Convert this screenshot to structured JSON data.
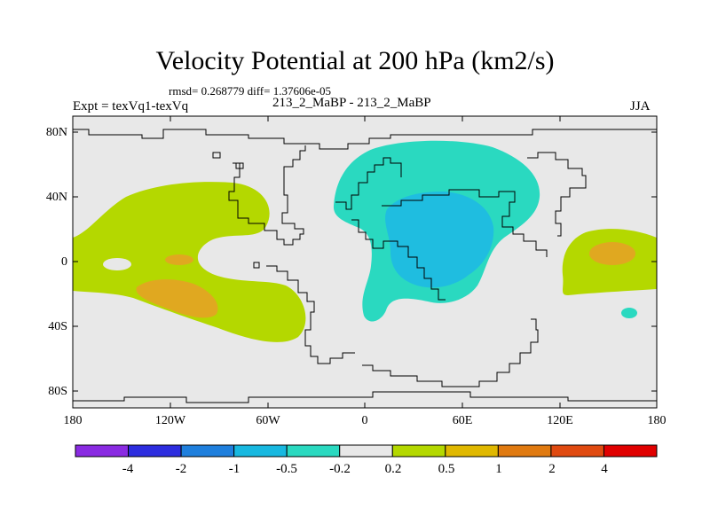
{
  "figure": {
    "title": "Velocity Potential at 200 hPa (km2/s)",
    "stats": "rmsd= 0.268779 diff= 1.37606e-05",
    "experiment": "Expt = texVq1-texVq",
    "case": "213_2_MaBP - 213_2_MaBP",
    "season": "JJA"
  },
  "axes": {
    "lat_labels": [
      "80N",
      "40N",
      "0",
      "40S",
      "80S"
    ],
    "lon_labels": [
      "180",
      "120W",
      "60W",
      "0",
      "60E",
      "120E",
      "180"
    ]
  },
  "colorbar": {
    "labels": [
      "-4",
      "-2",
      "-1",
      "-0.5",
      "-0.2",
      "0.2",
      "0.5",
      "1",
      "2",
      "4"
    ],
    "colors": [
      "#8a2be2",
      "#2d2ddf",
      "#1f7fdd",
      "#18b8e0",
      "#2ad9c0",
      "#e8e8e8",
      "#b4d800",
      "#e0b800",
      "#e07a10",
      "#e04a10",
      "#e00000"
    ]
  },
  "map_colors": {
    "neutral": "#e8e8e8",
    "neg_0_2": "#2ad9c0",
    "neg_0_5": "#1fbde0",
    "pos_0_2": "#b4d800",
    "pos_0_5": "#e0a820"
  }
}
